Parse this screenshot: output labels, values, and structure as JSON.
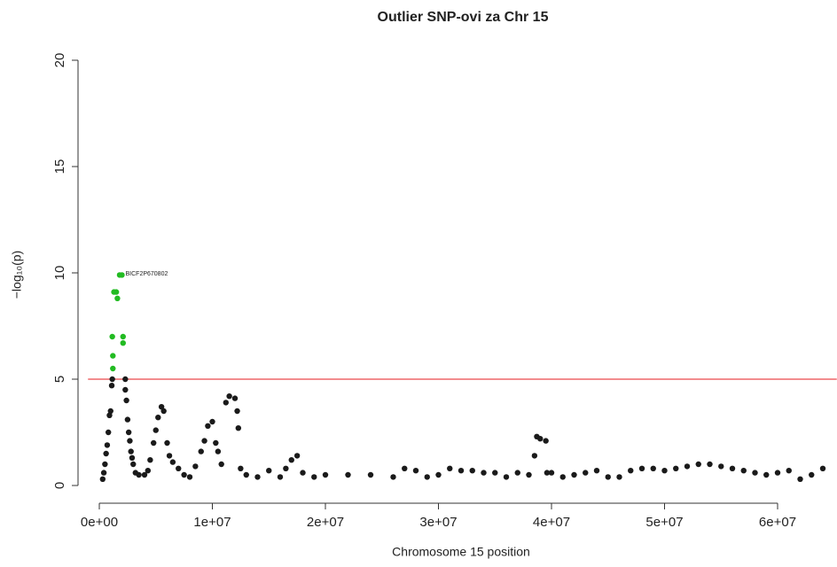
{
  "chart_data": {
    "type": "scatter",
    "title": "Outlier SNP-ovi za Chr 15",
    "x_label": "Chromosome 15 position",
    "y_label": "−log₁₀(p)",
    "xlim": [
      -1000000,
      65000000
    ],
    "ylim": [
      0,
      20
    ],
    "xticks": [
      {
        "value": 0,
        "label": "0e+00"
      },
      {
        "value": 10000000,
        "label": "1e+07"
      },
      {
        "value": 20000000,
        "label": "2e+07"
      },
      {
        "value": 30000000,
        "label": "3e+07"
      },
      {
        "value": 40000000,
        "label": "4e+07"
      },
      {
        "value": 50000000,
        "label": "5e+07"
      },
      {
        "value": 60000000,
        "label": "6e+07"
      }
    ],
    "yticks": [
      0,
      5,
      10,
      15,
      20
    ],
    "threshold": 5,
    "threshold_color": "#e41a1c",
    "annotation": {
      "text": "BICF2P670802",
      "x": 2000000,
      "y": 9.9
    },
    "series": [
      {
        "color": "#1a1a1a",
        "x": [
          300000,
          400000,
          500000,
          600000,
          700000,
          800000,
          900000,
          1000000,
          1100000,
          1150000,
          2300000,
          2300000,
          2400000,
          2500000,
          2600000,
          2700000,
          2800000,
          2900000,
          3000000,
          3200000,
          3500000,
          4000000,
          4300000,
          4500000,
          4800000,
          5000000,
          5200000,
          5500000,
          5700000,
          6000000,
          6200000,
          6500000,
          7000000,
          7500000,
          8000000,
          8500000,
          9000000,
          9300000,
          9600000,
          10000000,
          10300000,
          10500000,
          10800000,
          11200000,
          11500000,
          12000000,
          12200000,
          12300000,
          12500000,
          13000000,
          14000000,
          15000000,
          16000000,
          16500000,
          17000000,
          17500000,
          18000000,
          19000000,
          20000000,
          22000000,
          24000000,
          26000000,
          27000000,
          28000000,
          29000000,
          30000000,
          31000000,
          32000000,
          33000000,
          34000000,
          35000000,
          36000000,
          37000000,
          38000000,
          38500000,
          38700000,
          39000000,
          39500000,
          39600000,
          40000000,
          41000000,
          42000000,
          43000000,
          44000000,
          45000000,
          46000000,
          47000000,
          48000000,
          49000000,
          50000000,
          51000000,
          52000000,
          53000000,
          54000000,
          55000000,
          56000000,
          57000000,
          58000000,
          59000000,
          60000000,
          61000000,
          62000000,
          63000000,
          64000000
        ],
        "values": [
          0.3,
          0.6,
          1.0,
          1.5,
          1.9,
          2.5,
          3.3,
          3.5,
          4.7,
          5.0,
          5.0,
          4.5,
          4.0,
          3.1,
          2.5,
          2.1,
          1.6,
          1.3,
          1.0,
          0.6,
          0.5,
          0.5,
          0.7,
          1.2,
          2.0,
          2.6,
          3.2,
          3.7,
          3.5,
          2.0,
          1.4,
          1.1,
          0.8,
          0.5,
          0.4,
          0.9,
          1.6,
          2.1,
          2.8,
          3.0,
          2.0,
          1.6,
          1.0,
          3.9,
          4.2,
          4.1,
          3.5,
          2.7,
          0.8,
          0.5,
          0.4,
          0.7,
          0.4,
          0.8,
          1.2,
          1.4,
          0.6,
          0.4,
          0.5,
          0.5,
          0.5,
          0.4,
          0.8,
          0.7,
          0.4,
          0.5,
          0.8,
          0.7,
          0.7,
          0.6,
          0.6,
          0.4,
          0.6,
          0.5,
          1.4,
          2.3,
          2.2,
          2.1,
          0.6,
          0.6,
          0.4,
          0.5,
          0.6,
          0.7,
          0.4,
          0.4,
          0.7,
          0.8,
          0.8,
          0.7,
          0.8,
          0.9,
          1.0,
          1.0,
          0.9,
          0.8,
          0.7,
          0.6,
          0.5,
          0.6,
          0.7,
          0.3,
          0.5,
          0.8
        ]
      },
      {
        "color": "#22bb22",
        "x": [
          1200000,
          1200000,
          1150000,
          1300000,
          1500000,
          1600000,
          1800000,
          2000000,
          2100000,
          2100000
        ],
        "values": [
          5.5,
          6.1,
          7.0,
          9.1,
          9.1,
          8.8,
          9.9,
          9.9,
          7.0,
          6.7
        ]
      }
    ]
  }
}
